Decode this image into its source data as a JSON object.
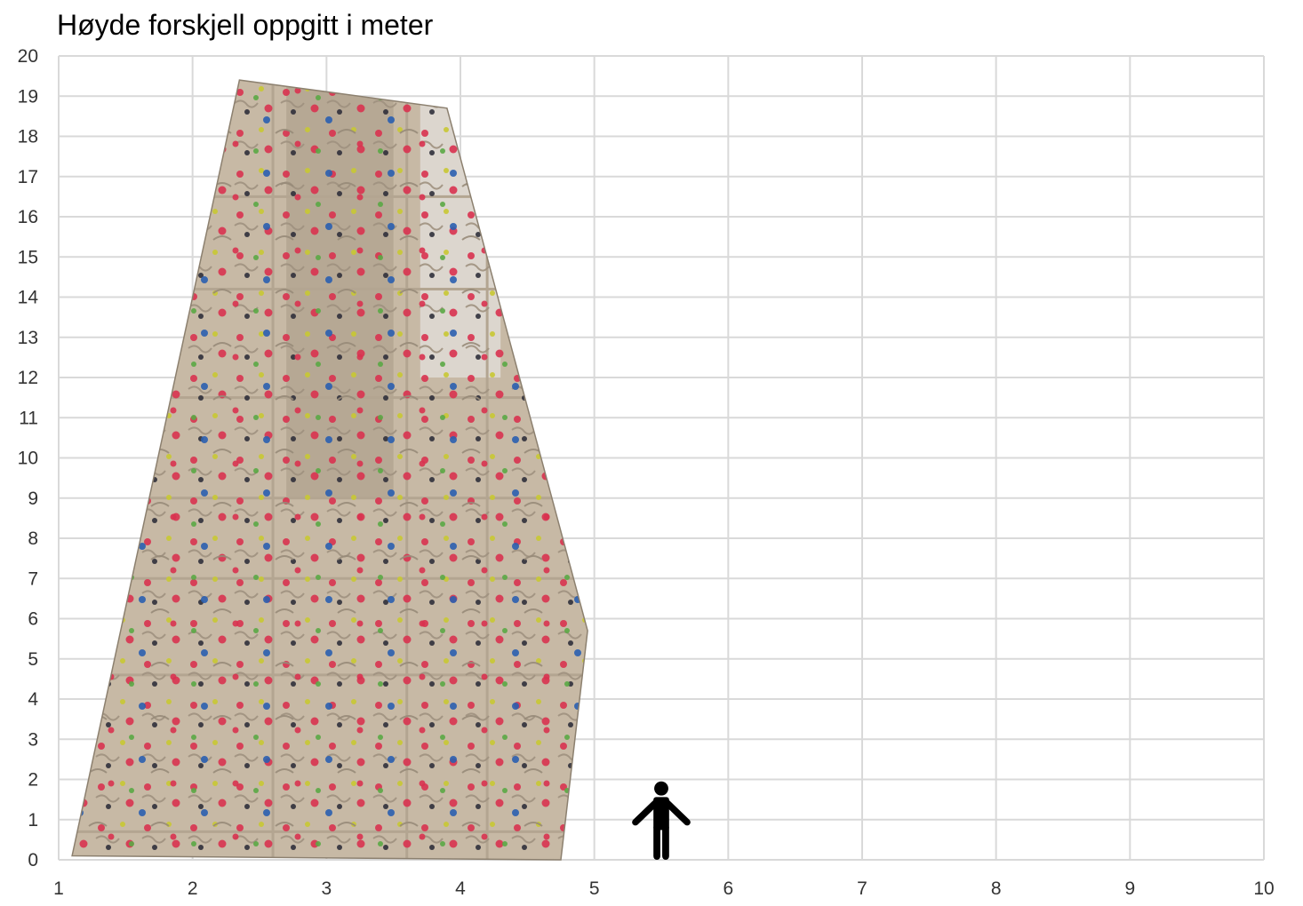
{
  "chart_data": {
    "type": "scatter",
    "title": "Høyde forskjell oppgitt i meter",
    "xlabel": "",
    "ylabel": "",
    "xlim": [
      1,
      10
    ],
    "ylim": [
      0,
      20
    ],
    "x_ticks": [
      1,
      2,
      3,
      4,
      5,
      6,
      7,
      8,
      9,
      10
    ],
    "y_ticks": [
      0,
      1,
      2,
      3,
      4,
      5,
      6,
      7,
      8,
      9,
      10,
      11,
      12,
      13,
      14,
      15,
      16,
      17,
      18,
      19,
      20
    ],
    "grid": true,
    "legend": "none",
    "annotations": [
      {
        "kind": "climbing-wall-photo",
        "outline": [
          [
            1.1,
            0.1
          ],
          [
            2.35,
            19.4
          ],
          [
            2.8,
            19.2
          ],
          [
            3.9,
            18.7
          ],
          [
            4.95,
            5.7
          ],
          [
            4.75,
            0.0
          ]
        ]
      },
      {
        "kind": "person-icon",
        "x": 5.5,
        "y_bottom": 0,
        "y_top": 1.95
      }
    ]
  },
  "colors": {
    "grid": "#d9d9d9",
    "wall": "#c7b9a5",
    "wall_shadow": "#a89a87",
    "person": "#000000"
  }
}
